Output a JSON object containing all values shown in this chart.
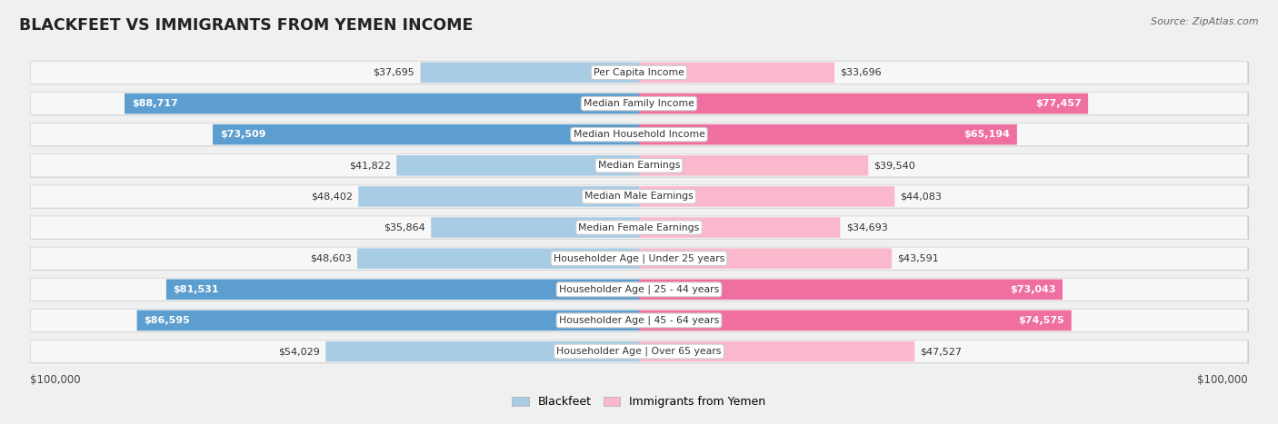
{
  "title": "BLACKFEET VS IMMIGRANTS FROM YEMEN INCOME",
  "source": "Source: ZipAtlas.com",
  "categories": [
    "Per Capita Income",
    "Median Family Income",
    "Median Household Income",
    "Median Earnings",
    "Median Male Earnings",
    "Median Female Earnings",
    "Householder Age | Under 25 years",
    "Householder Age | 25 - 44 years",
    "Householder Age | 45 - 64 years",
    "Householder Age | Over 65 years"
  ],
  "blackfeet_values": [
    37695,
    88717,
    73509,
    41822,
    48402,
    35864,
    48603,
    81531,
    86595,
    54029
  ],
  "yemen_values": [
    33696,
    77457,
    65194,
    39540,
    44083,
    34693,
    43591,
    73043,
    74575,
    47527
  ],
  "blackfeet_labels": [
    "$37,695",
    "$88,717",
    "$73,509",
    "$41,822",
    "$48,402",
    "$35,864",
    "$48,603",
    "$81,531",
    "$86,595",
    "$54,029"
  ],
  "yemen_labels": [
    "$33,696",
    "$77,457",
    "$65,194",
    "$39,540",
    "$44,083",
    "$34,693",
    "$43,591",
    "$73,043",
    "$74,575",
    "$47,527"
  ],
  "blackfeet_color_light": "#a8cce4",
  "blackfeet_color_dark": "#5b9ecf",
  "yemen_color_light": "#f9b8cb",
  "yemen_color_dark": "#ef6fa0",
  "large_threshold": 60000,
  "max_value": 100000,
  "xlabel_left": "$100,000",
  "xlabel_right": "$100,000",
  "legend_blackfeet": "Blackfeet",
  "legend_yemen": "Immigrants from Yemen",
  "row_bg_color": "#e8e8e8",
  "row_fill_color": "#f5f5f5"
}
